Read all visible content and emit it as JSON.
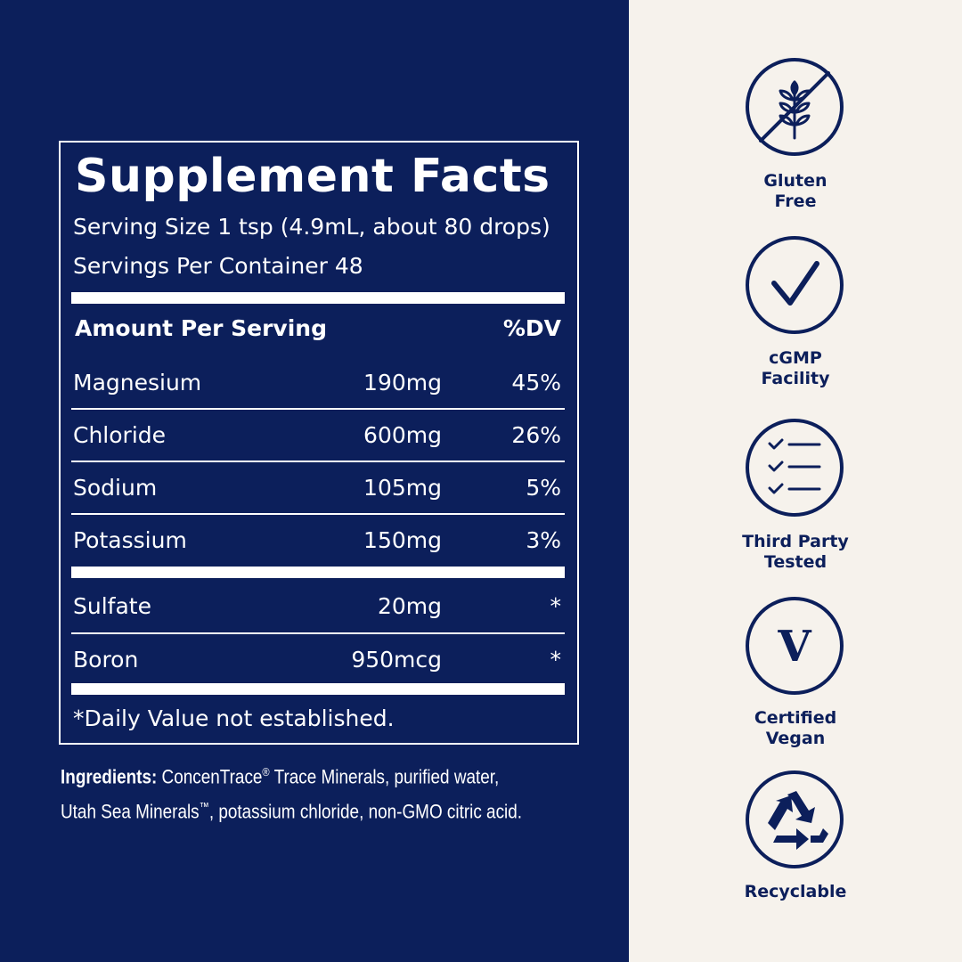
{
  "facts": {
    "title": "Supplement Facts",
    "serving_size": "Serving Size 1 tsp (4.9mL, about 80 drops)",
    "servings_per_container": "Servings Per Container 48",
    "header": {
      "amount": "Amount Per Serving",
      "dv": "%DV"
    },
    "rows": [
      [
        "Magnesium",
        "190mg",
        "45%"
      ],
      [
        "Chloride",
        "600mg",
        "26%"
      ],
      [
        "Sodium",
        "105mg",
        "5%"
      ],
      [
        "Potassium",
        "150mg",
        "3%"
      ]
    ],
    "other_rows": [
      [
        "Sulfate",
        "20mg",
        "*"
      ],
      [
        "Boron",
        "950mcg",
        "*"
      ]
    ],
    "footnote": "*Daily Value not established."
  },
  "ingredients": {
    "label": "Ingredients:",
    "brand_1": "ConcenTrace",
    "mark_1": "®",
    "text_1": "Trace Minerals, purified water,",
    "brand_2": "Utah Sea Minerals",
    "mark_2": "™",
    "text_2": ", potassium chloride, non-GMO citric acid."
  },
  "badges": [
    [
      "Gluten",
      "Free"
    ],
    [
      "cGMP",
      "Facility"
    ],
    [
      "Third Party",
      "Tested"
    ],
    [
      "Certified",
      "Vegan"
    ],
    [
      "Recyclable"
    ]
  ]
}
